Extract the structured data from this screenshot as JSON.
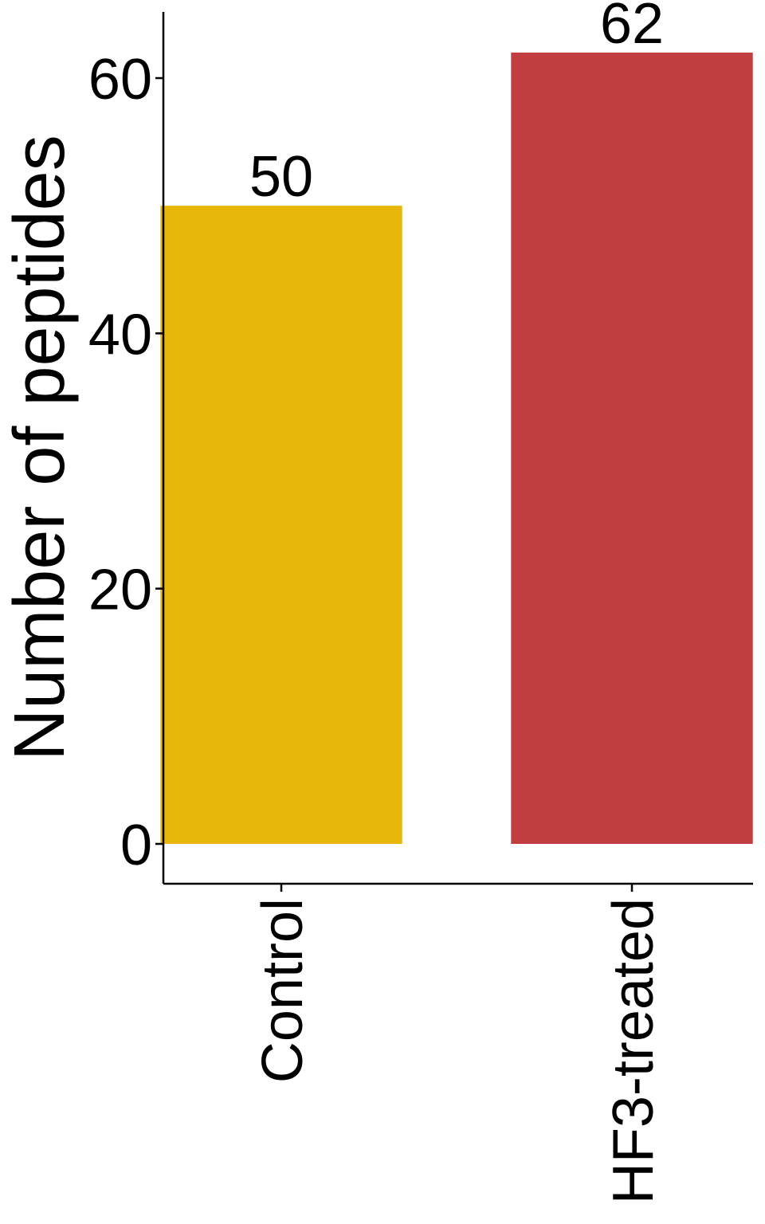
{
  "chart_data": {
    "type": "bar",
    "title": "",
    "xlabel": "",
    "ylabel": "Number of peptides",
    "categories": [
      "Control",
      "HF3-treated"
    ],
    "values": [
      50,
      62
    ],
    "data_labels": [
      "50",
      "62"
    ],
    "colors": [
      "#E8B70C",
      "#C03D40"
    ],
    "ylim": [
      -3,
      65
    ],
    "yticks": [
      0,
      20,
      40,
      60
    ],
    "ytick_labels": [
      "0",
      "20",
      "40",
      "60"
    ],
    "grid": false,
    "legend": "none"
  }
}
